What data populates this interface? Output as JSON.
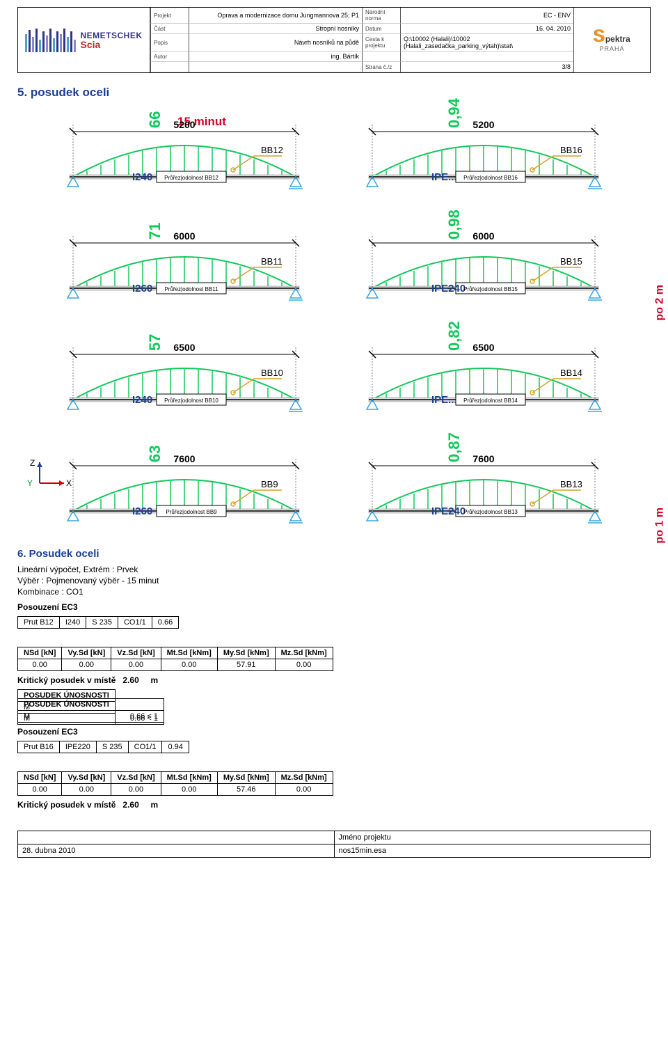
{
  "header": {
    "rows": [
      [
        "Projekt",
        "Oprava a modernizace domu Jungmannova 25; P1",
        "Národní norma",
        "EC - ENV"
      ],
      [
        "Část",
        "Stropní nosníky",
        "Datum",
        "16. 04. 2010"
      ],
      [
        "Popis",
        "Návrh nosníků na půdě",
        "Cesta k projektu",
        "Q:\\10002 (Halali)\\10002 (Halali_zasedačka_parking_výtah)\\stat\\"
      ],
      [
        "Autor",
        "ing. Bártík",
        "",
        ""
      ],
      [
        "",
        "",
        "Strana č./z",
        "3/8"
      ]
    ]
  },
  "logos": {
    "nemBarColors": [
      "#4aa3c7",
      "#333388",
      "#8a8ac7",
      "#333388",
      "#4aa3c7",
      "#333388",
      "#8a8ac7",
      "#333388",
      "#4aa3c7",
      "#333388",
      "#8a8ac7",
      "#333388",
      "#4aa3c7",
      "#333388",
      "#8a8ac7"
    ],
    "nemBarHeights": [
      26,
      32,
      22,
      34,
      18,
      30,
      24,
      34,
      20,
      30,
      26,
      34,
      22,
      30,
      18
    ],
    "nemTop": "NEMETSCHEK",
    "nemBot": "Scia",
    "spekBrand": "pektra",
    "spekSub": "PRAHA"
  },
  "sections": {
    "posudek5": "5. posudek oceli",
    "posudek6": "6. Posudek oceli"
  },
  "colors": {
    "beamAxis": "#000000",
    "load": "#11c85a",
    "annot": "#d6a12a",
    "support": "#35a7e0",
    "text": "#000000",
    "ross": "#000000"
  },
  "beams": [
    {
      "len": "5200",
      "vval": "66",
      "section": "I240",
      "tag": "BB12",
      "sup": "pin-roller"
    },
    {
      "len": "5200",
      "vval": "0,94",
      "section": "IPE...",
      "tag": "BB16",
      "sup": "pin-roller",
      "side": ""
    },
    {
      "len": "6000",
      "vval": "71",
      "section": "I260",
      "tag": "BB11",
      "sup": "pin-roller"
    },
    {
      "len": "6000",
      "vval": "0,98",
      "section": "IPE240",
      "tag": "BB15",
      "sup": "pin-roller",
      "side": "po 2 m"
    },
    {
      "len": "6500",
      "vval": "57",
      "section": "I240",
      "tag": "BB10",
      "sup": "pin-roller"
    },
    {
      "len": "6500",
      "vval": "0,82",
      "section": "IPE...",
      "tag": "BB14",
      "sup": "pin-roller",
      "side": ""
    },
    {
      "len": "7600",
      "vval": "63",
      "section": "I260",
      "tag": "BB9",
      "sup": "pin-roller"
    },
    {
      "len": "7600",
      "vval": "0,87",
      "section": "IPE240",
      "tag": "BB13",
      "sup": "pin-roller",
      "side": "po 1 m"
    }
  ],
  "fifteen": "15 minut",
  "calcIntro": [
    "Lineární výpočet, Extrém : Prvek",
    "Výběr : Pojmenovaný výběr - 15 minut",
    "Kombinace : CO1"
  ],
  "posouzeniLabel": "Posouzení EC3",
  "prut1": [
    "Prut B12",
    "I240",
    "S 235",
    "CO1/1",
    "0.66"
  ],
  "tableHdr": [
    "NSd [kN]",
    "Vy.Sd [kN]",
    "Vz.Sd [kN]",
    "Mt.Sd [kNm]",
    "My.Sd [kNm]",
    "Mz.Sd [kNm]"
  ],
  "tableVals1": [
    "0.00",
    "0.00",
    "0.00",
    "0.00",
    "57.91",
    "0.00"
  ],
  "kritLabel": "Kritický posudek v místě",
  "kritVal1": "2.60",
  "kritUnit": "m",
  "unosHeader": "POSUDEK ÚNOSNOSTI",
  "unosRow": [
    "M",
    "0.66 < 1"
  ],
  "prut2": [
    "Prut B16",
    "IPE220",
    "S 235",
    "CO1/1",
    "0.94"
  ],
  "tableVals2": [
    "0.00",
    "0.00",
    "0.00",
    "0.00",
    "57.46",
    "0.00"
  ],
  "kritVal2": "2.60",
  "footer": {
    "jmeno": "Jméno projektu",
    "date": "28. dubna 2010",
    "file": "nos15min.esa"
  }
}
